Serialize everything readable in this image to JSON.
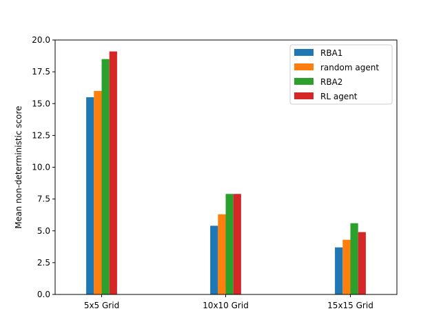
{
  "chart_data": {
    "type": "bar",
    "title": "",
    "xlabel": "",
    "ylabel": "Mean non-deterministic score",
    "categories": [
      "5x5 Grid",
      "10x10 Grid",
      "15x15 Grid"
    ],
    "ylim": [
      0,
      20
    ],
    "yticks": [
      "0.0",
      "2.5",
      "5.0",
      "7.5",
      "10.0",
      "12.5",
      "15.0",
      "17.5",
      "20.0"
    ],
    "grid": false,
    "legend_position": "top-right",
    "series": [
      {
        "name": "RBA1",
        "color": "#1f77b4",
        "values": [
          15.5,
          5.4,
          3.7
        ]
      },
      {
        "name": "random agent",
        "color": "#ff7f0e",
        "values": [
          16.0,
          6.3,
          4.3
        ]
      },
      {
        "name": "RBA2",
        "color": "#2ca02c",
        "values": [
          18.5,
          7.9,
          5.6
        ]
      },
      {
        "name": "RL agent",
        "color": "#d62728",
        "values": [
          19.1,
          7.9,
          4.9
        ]
      }
    ]
  }
}
